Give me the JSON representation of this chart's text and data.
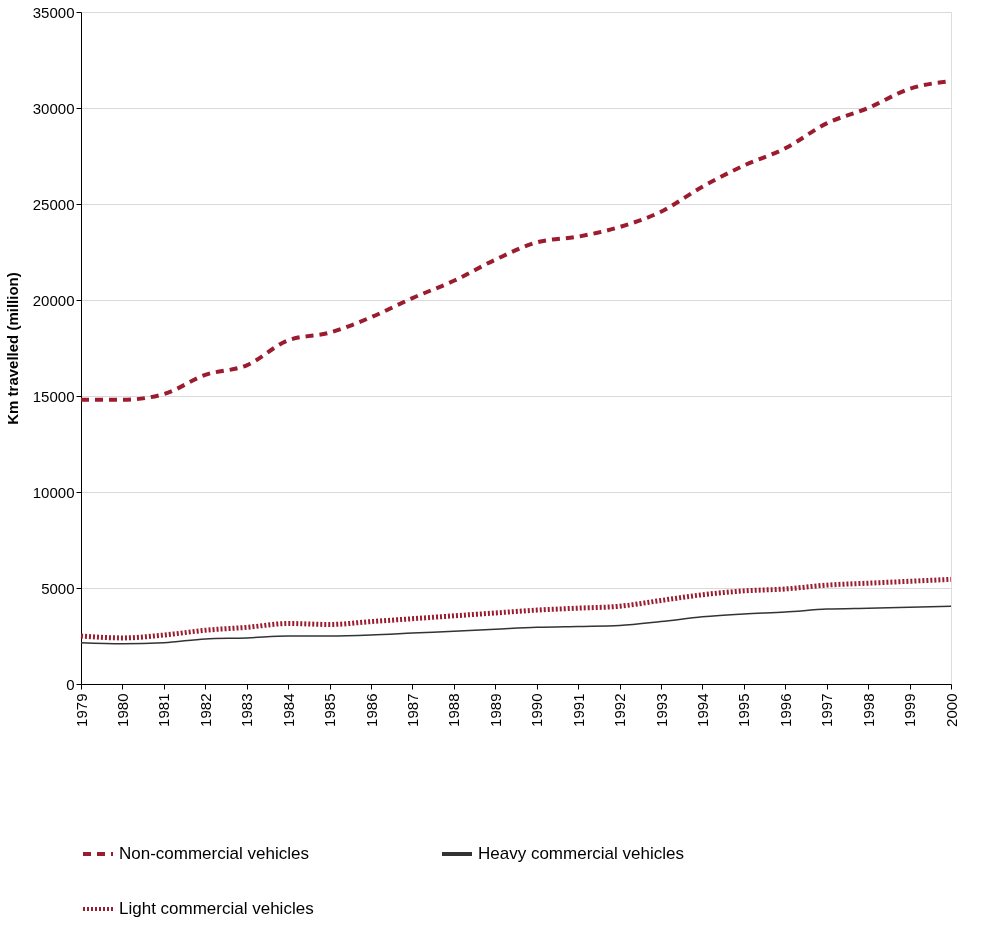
{
  "chart_data": {
    "type": "line",
    "ylabel": "Km travelled (million)",
    "x": [
      1979,
      1980,
      1981,
      1982,
      1983,
      1984,
      1985,
      1986,
      1987,
      1988,
      1989,
      1990,
      1991,
      1992,
      1993,
      1994,
      1995,
      1996,
      1997,
      1998,
      1999,
      2000
    ],
    "xlim": [
      1979,
      2000
    ],
    "xticks": [
      1979,
      1980,
      1981,
      1982,
      1983,
      1984,
      1985,
      1986,
      1987,
      1988,
      1989,
      1990,
      1991,
      1992,
      1993,
      1994,
      1995,
      1996,
      1997,
      1998,
      1999,
      2000
    ],
    "ylim": [
      0,
      35000
    ],
    "yticks": [
      0,
      5000,
      10000,
      15000,
      20000,
      25000,
      30000,
      35000
    ],
    "grid": "y",
    "legend": "bottom",
    "series": [
      {
        "name": "Non-commercial vehicles",
        "color": "#9b1c2e",
        "line_style": "dashed",
        "values": [
          14800,
          14800,
          15100,
          16100,
          16600,
          17900,
          18300,
          19100,
          20100,
          21000,
          22100,
          23000,
          23300,
          23800,
          24600,
          25900,
          27000,
          27900,
          29200,
          30000,
          31000,
          31400
        ]
      },
      {
        "name": "Heavy commercial vehicles",
        "color": "#333333",
        "line_style": "solid",
        "values": [
          2150,
          2100,
          2150,
          2350,
          2400,
          2500,
          2500,
          2550,
          2650,
          2750,
          2850,
          2950,
          3000,
          3050,
          3250,
          3500,
          3650,
          3750,
          3900,
          3950,
          4000,
          4050
        ]
      },
      {
        "name": "Light commercial vehicles",
        "color": "#9b1c2e",
        "line_style": "dotted",
        "values": [
          2500,
          2400,
          2550,
          2800,
          2950,
          3150,
          3100,
          3250,
          3400,
          3550,
          3700,
          3850,
          3950,
          4050,
          4350,
          4650,
          4850,
          4950,
          5150,
          5250,
          5350,
          5450
        ]
      }
    ]
  }
}
